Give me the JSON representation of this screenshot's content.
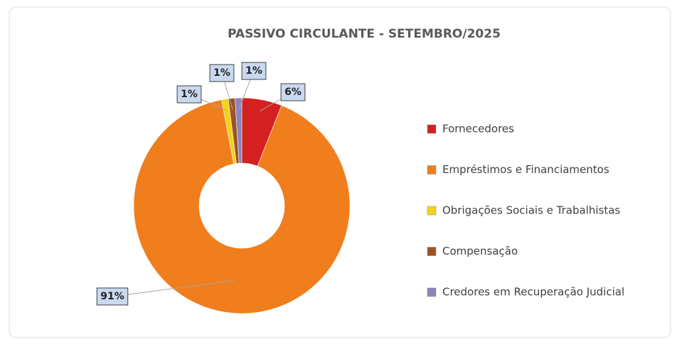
{
  "chart_data": {
    "type": "donut",
    "title": "PASSIVO  CIRCULANTE - SETEMBRO/2025",
    "categories": [
      "Fornecedores",
      "Empréstimos e Financiamentos",
      "Obrigações Sociais e Trabalhistas",
      "Compensação",
      "Credores em Recuperação Judicial"
    ],
    "values": [
      6,
      91,
      1,
      1,
      1
    ],
    "value_labels": [
      "6%",
      "91%",
      "1%",
      "1%",
      "1%"
    ],
    "colors": [
      "#d42020",
      "#f07e1c",
      "#f2d21a",
      "#9c5424",
      "#8b84bd"
    ],
    "legend": "right"
  }
}
